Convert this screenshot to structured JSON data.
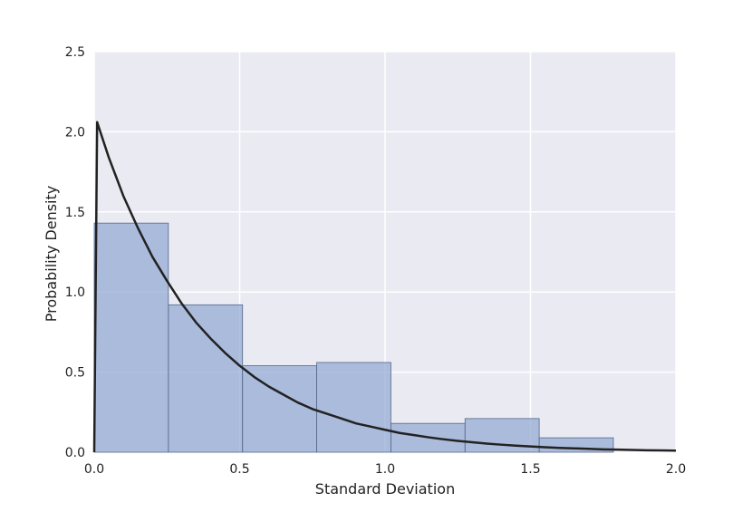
{
  "chart_data": {
    "type": "bar",
    "title": "",
    "xlabel": "Standard Deviation",
    "ylabel": "Probability Density",
    "xlim": [
      0.0,
      2.0
    ],
    "ylim": [
      0.0,
      2.5
    ],
    "xticks": [
      "0.0",
      "0.5",
      "1.0",
      "1.5",
      "2.0"
    ],
    "yticks": [
      "0.0",
      "0.5",
      "1.0",
      "1.5",
      "2.0",
      "2.5"
    ],
    "grid": true,
    "histogram": {
      "bin_edges": [
        0.0,
        0.255,
        0.51,
        0.765,
        1.02,
        1.275,
        1.53,
        1.785
      ],
      "values": [
        1.43,
        0.92,
        0.54,
        0.56,
        0.18,
        0.21,
        0.09
      ]
    },
    "curve": {
      "x": [
        0.0,
        0.01,
        0.03,
        0.05,
        0.1,
        0.15,
        0.2,
        0.25,
        0.3,
        0.35,
        0.4,
        0.45,
        0.5,
        0.55,
        0.6,
        0.65,
        0.7,
        0.75,
        0.8,
        0.85,
        0.9,
        0.95,
        1.0,
        1.05,
        1.1,
        1.15,
        1.2,
        1.25,
        1.3,
        1.35,
        1.4,
        1.45,
        1.5,
        1.55,
        1.6,
        1.65,
        1.7,
        1.75,
        1.8,
        1.85,
        1.9,
        1.95,
        2.0
      ],
      "y": [
        0.0,
        2.06,
        1.95,
        1.84,
        1.6,
        1.4,
        1.22,
        1.07,
        0.93,
        0.81,
        0.71,
        0.62,
        0.54,
        0.47,
        0.41,
        0.36,
        0.31,
        0.27,
        0.24,
        0.21,
        0.18,
        0.16,
        0.14,
        0.12,
        0.107,
        0.093,
        0.081,
        0.071,
        0.062,
        0.054,
        0.047,
        0.041,
        0.036,
        0.031,
        0.027,
        0.024,
        0.021,
        0.018,
        0.016,
        0.014,
        0.012,
        0.011,
        0.01
      ]
    },
    "colors": {
      "background": "#eaeaf2",
      "grid": "#ffffff",
      "bar_fill": "#8fa6d3",
      "bar_edge": "#55688a",
      "curve": "#222222"
    }
  }
}
